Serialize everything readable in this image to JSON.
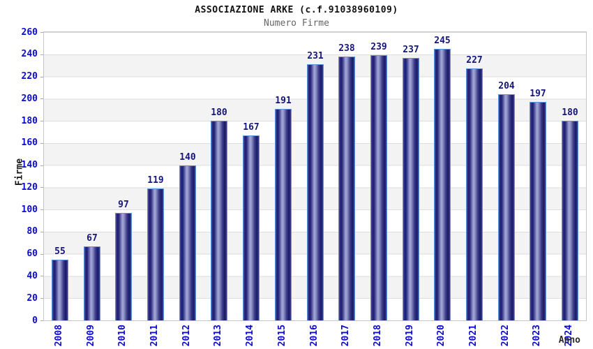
{
  "chart_data": {
    "type": "bar",
    "title": "ASSOCIAZIONE ARKE (c.f.91038960109)",
    "subtitle": "Numero Firme",
    "xlabel": "Anno",
    "ylabel": "Firme",
    "categories": [
      "2008",
      "2009",
      "2010",
      "2011",
      "2012",
      "2013",
      "2014",
      "2015",
      "2016",
      "2017",
      "2018",
      "2019",
      "2020",
      "2021",
      "2022",
      "2023",
      "2024"
    ],
    "values": [
      55,
      67,
      97,
      119,
      140,
      180,
      167,
      191,
      231,
      238,
      239,
      237,
      245,
      227,
      204,
      197,
      180
    ],
    "ylim": [
      0,
      260
    ],
    "ytick_step": 20,
    "grid": true,
    "legend": "none",
    "colors": {
      "bar_dark": "#1d1d71",
      "bar_light": "#a4a8d5",
      "bar_border": "#5f94dd",
      "tick_label": "#0b0bcc",
      "value_label": "#16167a",
      "title": "#111111",
      "subtitle": "#666666",
      "band": "#f3f3f3",
      "gridline": "#dedede",
      "plot_border": "#c6c6c6",
      "background": "#ffffff"
    }
  }
}
